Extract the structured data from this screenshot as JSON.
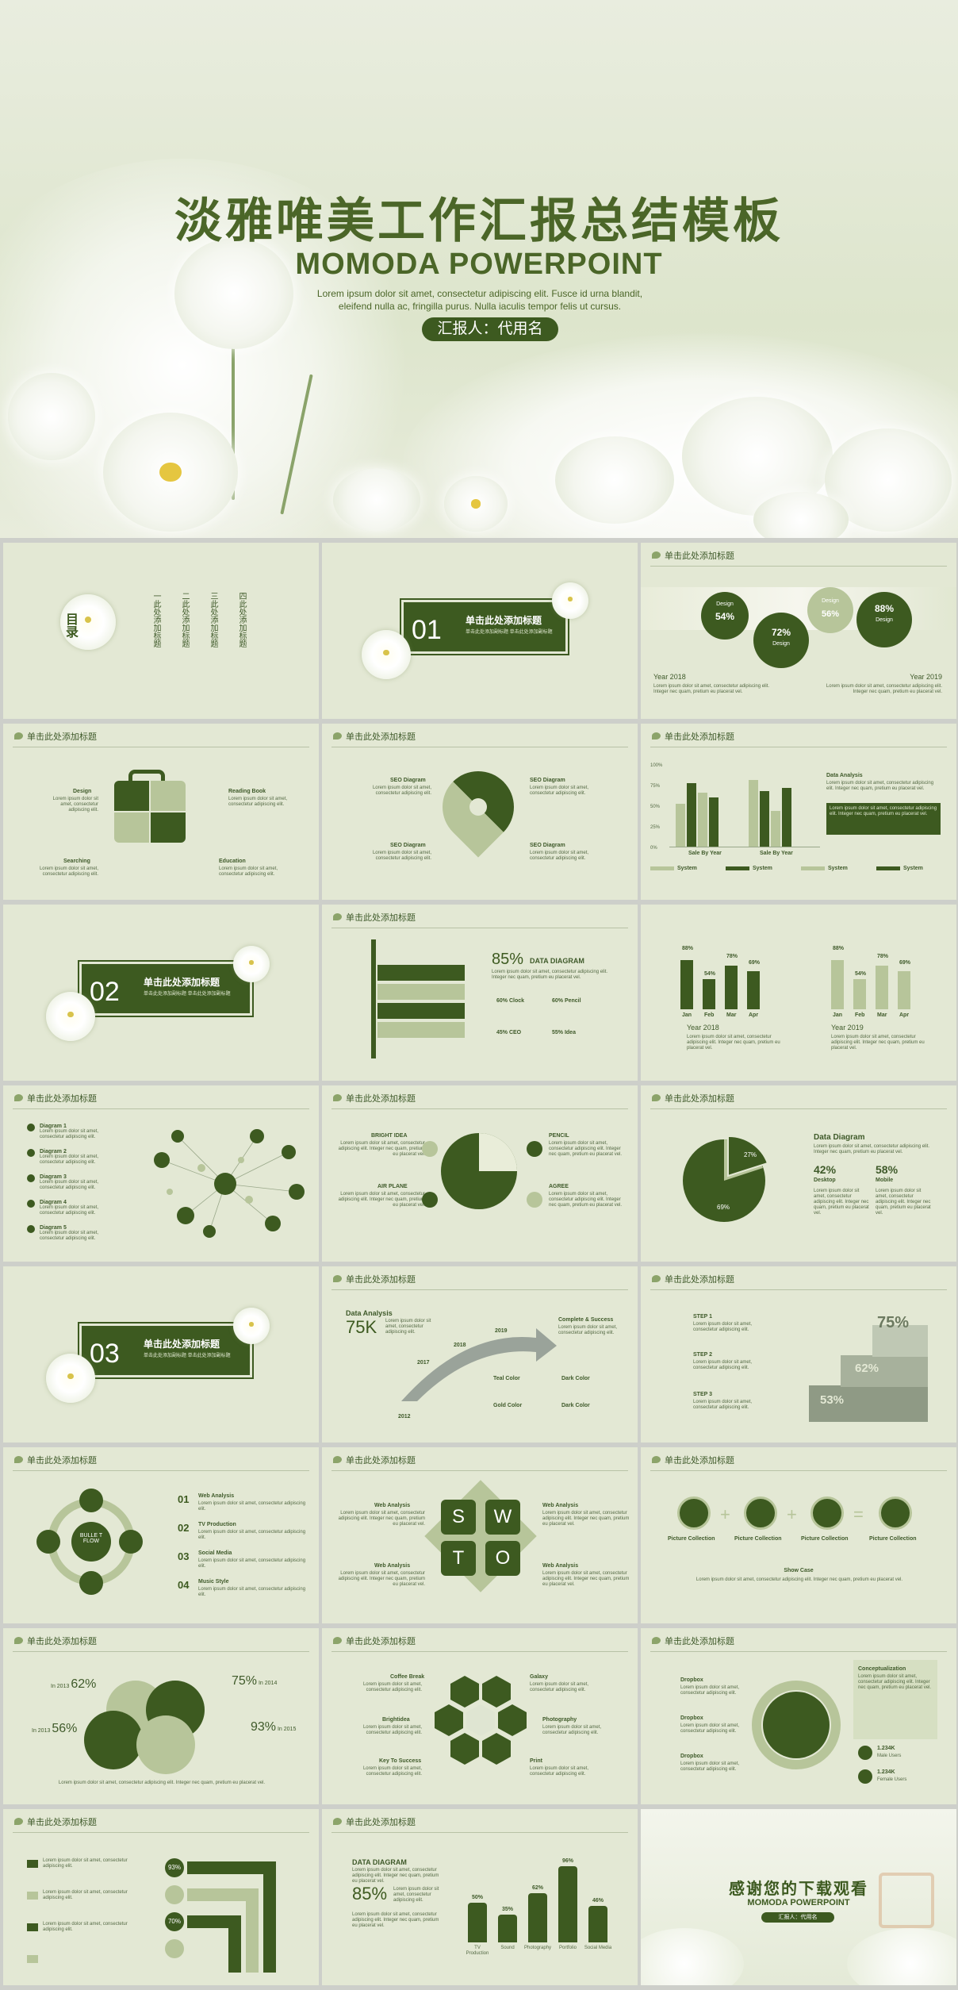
{
  "hero": {
    "title": "淡雅唯美工作汇报总结模板",
    "subtitle": "MOMODA POWERPOINT",
    "lorem": "Lorem ipsum dolor sit amet, consectetur adipiscing elit. Fusce id urna blandit, eleifend nulla ac, fringilla purus. Nulla iaculis tempor felis ut cursus.",
    "reporter": "汇报人：代用名"
  },
  "common": {
    "slide_header": "单击此处添加标题",
    "lorem_short": "Lorem ipsum dolor sit amet, consectetur adipiscing elit.",
    "lorem_long": "Lorem ipsum dolor sit amet, consectetur adipiscing elit. Integer nec quam, pretium eu placerat vel."
  },
  "toc": {
    "label": "目录",
    "items": [
      "一此处添加标题",
      "二此处添加标题",
      "三此处添加标题",
      "四此处添加标题"
    ]
  },
  "sections": [
    {
      "num": "01",
      "label": "单击此处添加标题",
      "sub": "单击此处添加副标题  单击此处添加副标题"
    },
    {
      "num": "02",
      "label": "单击此处添加标题",
      "sub": "单击此处添加副标题  单击此处添加副标题"
    },
    {
      "num": "03",
      "label": "单击此处添加标题",
      "sub": "单击此处添加副标题  单击此处添加副标题"
    }
  ],
  "s3": {
    "c1": "Design",
    "p1": "54%",
    "c2": "72%",
    "c2l": "Design",
    "c3": "Design",
    "p3": "56%",
    "c4": "88%",
    "c4l": "Design",
    "y1": "Year 2018",
    "y2": "Year 2019"
  },
  "s4": {
    "labels": [
      "Design",
      "Reading Book",
      "Searching",
      "Education"
    ]
  },
  "s5": {
    "labels": [
      "SEO Diagram",
      "SEO Diagram",
      "SEO Diagram",
      "SEO Diagram"
    ]
  },
  "s6": {
    "yticks": [
      "100%",
      "75%",
      "50%",
      "25%",
      "0%"
    ],
    "title": "Data Analysis",
    "xlabels": [
      "Sale By Year",
      "Sale By Year"
    ],
    "legend": [
      "System",
      "System",
      "System",
      "System"
    ]
  },
  "s8": {
    "pct": "85%",
    "title": "DATA DIAGRAM",
    "items": [
      "60% Clock",
      "60% Pencil",
      "45% CEO",
      "55% Idea"
    ]
  },
  "s9": {
    "months": [
      "Jan",
      "Feb",
      "Mar",
      "Apr"
    ],
    "y1": "Year 2018",
    "y2": "Year 2019",
    "v1": [
      "88%",
      "54%",
      "78%",
      "69%"
    ],
    "v2": [
      "88%",
      "54%",
      "78%",
      "69%"
    ]
  },
  "s10": {
    "items": [
      "Diagram 1",
      "Diagram 2",
      "Diagram 3",
      "Diagram 4",
      "Diagram 5"
    ]
  },
  "s11": {
    "labels": [
      "BRIGHT IDEA",
      "PENCIL",
      "AIR PLANE",
      "AGREE"
    ]
  },
  "s12": {
    "title": "Data Diagram",
    "p1": "42%",
    "l1": "Desktop",
    "p2": "58%",
    "l2": "Mobile",
    "pie": [
      "27%",
      "69%"
    ]
  },
  "s14": {
    "title": "Data Analysis",
    "big": "75K",
    "years": [
      "2017",
      "2018",
      "2019",
      "2012"
    ],
    "end": "Complete & Success",
    "colors": [
      "Teal Color",
      "Dark Color",
      "Gold Color",
      "Dark Color"
    ]
  },
  "s15": {
    "steps": [
      "STEP 1",
      "STEP 2",
      "STEP 3"
    ],
    "pcts": [
      "75%",
      "62%",
      "53%"
    ]
  },
  "s16": {
    "center": "BULLE T FLOW",
    "nums": [
      "01",
      "02",
      "03",
      "04"
    ],
    "items": [
      {
        "n": "01",
        "t": "Web Analysis"
      },
      {
        "n": "02",
        "t": "TV Production"
      },
      {
        "n": "03",
        "t": "Social Media"
      },
      {
        "n": "04",
        "t": "Music Style"
      }
    ]
  },
  "s17": {
    "letters": [
      "S",
      "W",
      "T",
      "O"
    ],
    "labels": [
      "Web Analysis",
      "Web Analysis",
      "Web Analysis",
      "Web Analysis"
    ]
  },
  "s18": {
    "labels": [
      "Picture Collection",
      "Picture Collection",
      "Picture Collection",
      "Picture Collection"
    ],
    "case": "Show Case"
  },
  "s19": {
    "left": [
      {
        "y": "In 2013",
        "p": "62%"
      },
      {
        "y": "In 2013",
        "p": "56%"
      }
    ],
    "right": [
      {
        "p": "75%",
        "y": "In 2014"
      },
      {
        "p": "93%",
        "y": "In 2015"
      }
    ]
  },
  "s20": {
    "labels": [
      "Coffee Break",
      "Galaxy",
      "Brightidea",
      "Photography",
      "Key To Success",
      "Print"
    ]
  },
  "s21": {
    "items": [
      "Dropbox",
      "Dropbox",
      "Dropbox"
    ],
    "concept": "Conceptualization",
    "m": "1.234K",
    "ml": "Male Users",
    "f": "1.234K",
    "fl": "Female Users"
  },
  "s22": {
    "pcts": [
      "93%",
      "70%"
    ]
  },
  "s23": {
    "title": "DATA DIAGRAM",
    "big": "85%",
    "bars": [
      {
        "v": "50%",
        "l": "TV Production"
      },
      {
        "v": "35%",
        "l": "Sound"
      },
      {
        "v": "62%",
        "l": "Photography"
      },
      {
        "v": "96%",
        "l": "Portfolio"
      },
      {
        "v": "46%",
        "l": "Social Media"
      }
    ]
  },
  "s24": {
    "title": "感谢您的下载观看",
    "sub": "MOMODA POWERPOINT",
    "reporter": "汇报人：代用名"
  }
}
